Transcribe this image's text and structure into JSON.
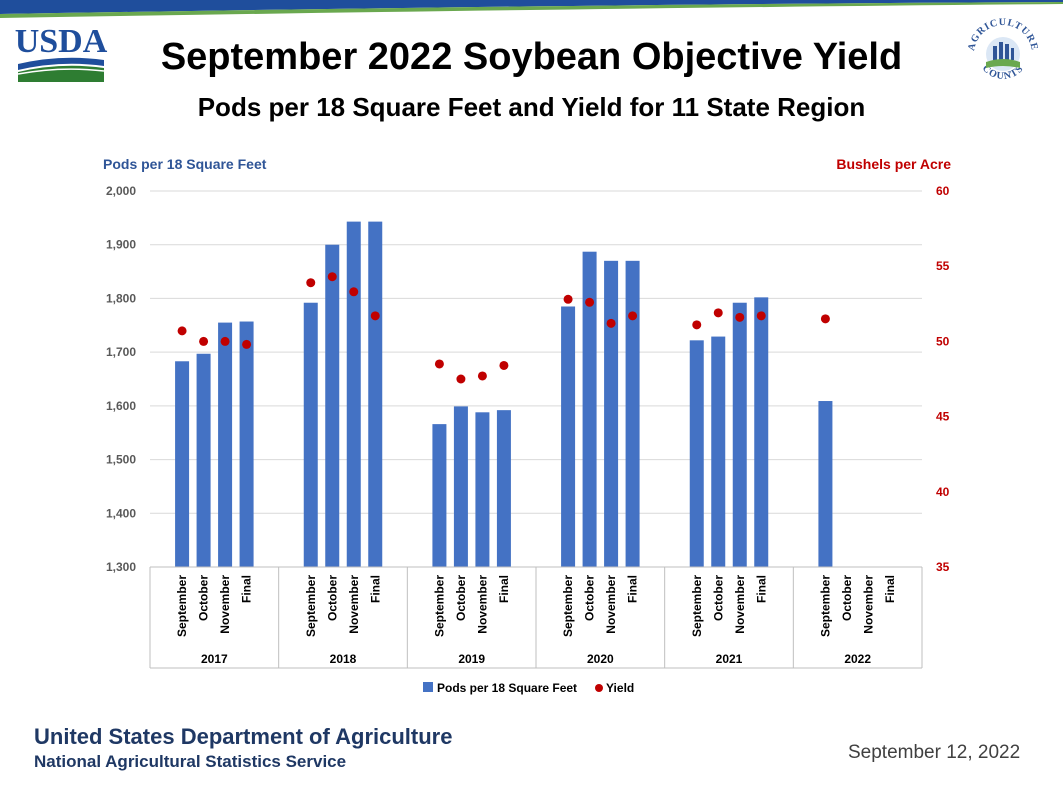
{
  "header": {
    "agency_logo_text": "USDA",
    "title": "September 2022 Soybean Objective Yield",
    "subtitle": "Pods per 18 Square Feet and Yield for 11 State Region",
    "seal_text_top": "AGRICULTURE",
    "seal_text_bottom": "COUNTS"
  },
  "chart_data": {
    "type": "bar",
    "left_axis_label": "Pods per 18 Square Feet",
    "right_axis_label": "Bushels per Acre",
    "left_axis": {
      "min": 1300,
      "max": 2000,
      "ticks": [
        "1,300",
        "1,400",
        "1,500",
        "1,600",
        "1,700",
        "1,800",
        "1,900",
        "2,000"
      ]
    },
    "right_axis": {
      "min": 35,
      "max": 60,
      "ticks": [
        "35",
        "40",
        "45",
        "50",
        "55",
        "60"
      ]
    },
    "months": [
      "September",
      "October",
      "November",
      "Final"
    ],
    "years": [
      "2017",
      "2018",
      "2019",
      "2020",
      "2021",
      "2022"
    ],
    "series": [
      {
        "name": "Pods per 18 Square Feet",
        "kind": "bar",
        "color": "#4472c4",
        "values": [
          [
            1683,
            1697,
            1755,
            1757
          ],
          [
            1792,
            1900,
            1943,
            1943
          ],
          [
            1566,
            1599,
            1588,
            1592
          ],
          [
            1785,
            1887,
            1870,
            1870
          ],
          [
            1722,
            1729,
            1792,
            1802
          ],
          [
            1609,
            null,
            null,
            null
          ]
        ]
      },
      {
        "name": "Yield",
        "kind": "scatter",
        "axis": "right",
        "color": "#c00000",
        "values": [
          [
            50.7,
            50.0,
            50.0,
            49.8
          ],
          [
            53.9,
            54.3,
            53.3,
            51.7
          ],
          [
            48.5,
            47.5,
            47.7,
            48.4
          ],
          [
            52.8,
            52.6,
            51.2,
            51.7
          ],
          [
            51.1,
            51.9,
            51.6,
            51.7
          ],
          [
            51.5,
            null,
            null,
            null
          ]
        ]
      }
    ],
    "legend_position": "bottom",
    "grid": true
  },
  "footer": {
    "department": "United States Department of Agriculture",
    "service": "National Agricultural Statistics Service",
    "date": "September 12, 2022"
  },
  "colors": {
    "bar": "#4472c4",
    "yield": "#c00000",
    "left_axis_label": "#2f5597",
    "right_axis_label": "#c00000",
    "footer_text": "#1f3864",
    "usda_blue": "#1f4e9c",
    "usda_green": "#2e7d32"
  }
}
